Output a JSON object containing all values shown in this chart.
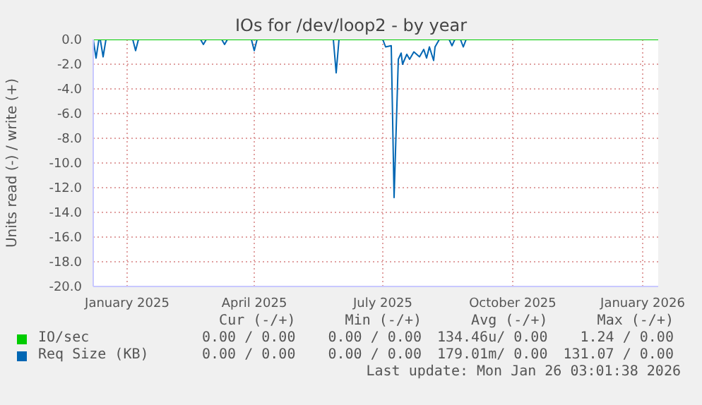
{
  "chart_data": {
    "type": "line",
    "title": "IOs for /dev/loop2 - by year",
    "ylabel": "Units read (-) / write (+)",
    "xlim": [
      "2024-12-22",
      "2026-01-26"
    ],
    "xticks": [
      {
        "value": "2025-01-15",
        "label": "January 2025"
      },
      {
        "value": "2025-04-15",
        "label": "April 2025"
      },
      {
        "value": "2025-07-15",
        "label": "July 2025"
      },
      {
        "value": "2025-10-15",
        "label": "October 2025"
      },
      {
        "value": "2026-01-15",
        "label": "January 2026"
      }
    ],
    "ylim": [
      -20,
      0
    ],
    "yticks": [
      {
        "value": 0,
        "label": "0.0"
      },
      {
        "value": -2,
        "label": "-2.0"
      },
      {
        "value": -4,
        "label": "-4.0"
      },
      {
        "value": -6,
        "label": "-6.0"
      },
      {
        "value": -8,
        "label": "-8.0"
      },
      {
        "value": -10,
        "label": "-10.0"
      },
      {
        "value": -12,
        "label": "-12.0"
      },
      {
        "value": -14,
        "label": "-14.0"
      },
      {
        "value": -16,
        "label": "-16.0"
      },
      {
        "value": -18,
        "label": "-18.0"
      },
      {
        "value": -20,
        "label": "-20.0"
      }
    ],
    "grid": true,
    "legend": "bottom",
    "marker": "none",
    "series": [
      {
        "name": "IO/sec",
        "color": "#00cc00",
        "x": [
          "2024-12-22",
          "2026-01-26"
        ],
        "values": [
          0,
          0
        ]
      },
      {
        "name": "Req Size (KB)",
        "color": "#0066b3",
        "x": [
          "2024-12-22",
          "2024-12-24",
          "2024-12-26",
          "2024-12-27",
          "2024-12-29",
          "2024-12-31",
          "2025-01-19",
          "2025-01-21",
          "2025-01-23",
          "2025-03-08",
          "2025-03-10",
          "2025-03-12",
          "2025-03-23",
          "2025-03-25",
          "2025-03-27",
          "2025-04-13",
          "2025-04-15",
          "2025-04-17",
          "2025-06-10",
          "2025-06-12",
          "2025-06-14",
          "2025-07-15",
          "2025-07-17",
          "2025-07-21",
          "2025-07-23",
          "2025-07-26",
          "2025-07-28",
          "2025-07-29",
          "2025-08-01",
          "2025-08-03",
          "2025-08-06",
          "2025-08-10",
          "2025-08-13",
          "2025-08-15",
          "2025-08-17",
          "2025-08-20",
          "2025-08-21",
          "2025-08-24",
          "2025-08-31",
          "2025-09-02",
          "2025-09-04",
          "2025-09-08",
          "2025-09-10",
          "2025-09-12",
          "2026-01-26"
        ],
        "values": [
          0,
          -1.5,
          0,
          0,
          -1.4,
          0,
          0,
          -0.9,
          0,
          0,
          -0.4,
          0,
          0,
          -0.4,
          0,
          0,
          -0.9,
          0,
          0,
          -2.7,
          0,
          0,
          -0.6,
          -0.5,
          -12.8,
          -1.6,
          -1.1,
          -2.0,
          -1.2,
          -1.6,
          -1.0,
          -1.4,
          -0.8,
          -1.5,
          -0.6,
          -1.7,
          -0.6,
          0,
          0,
          -0.5,
          0,
          0,
          -0.6,
          0,
          0
        ]
      }
    ],
    "annotations": [
      "Cur (-/+)",
      "Min (-/+)",
      "Avg (-/+)",
      "Max (-/+)",
      "0.00 / 0.00",
      "0.00 / 0.00",
      "134.46u/ 0.00",
      "1.24 / 0.00",
      "0.00 / 0.00",
      "0.00 / 0.00",
      "179.01m/ 0.00",
      "131.07 / 0.00",
      "Last update: Mon Jan 26 03:01:38 2026"
    ]
  }
}
